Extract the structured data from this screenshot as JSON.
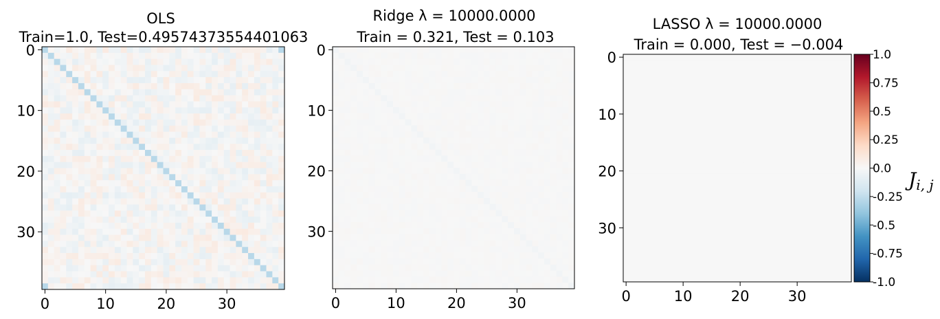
{
  "chart_data": [
    {
      "type": "heatmap",
      "title_line1": "OLS",
      "title_line2": "Train=1.0, Test=0.49574373554401063",
      "size": 40,
      "x_ticks": [
        "0",
        "10",
        "20",
        "30"
      ],
      "y_ticks": [
        "0",
        "10",
        "20",
        "30"
      ],
      "diagonal_value": -0.28,
      "corner_values": {
        "top_right": -0.28,
        "bottom_left": -0.28
      },
      "offdiag_noise_amplitude": 0.09,
      "background_value": 0.0
    },
    {
      "type": "heatmap",
      "title_line1": "Ridge λ = 10000.0000",
      "title_line2": "Train = 0.321, Test = 0.103",
      "size": 40,
      "x_ticks": [
        "0",
        "10",
        "20",
        "30"
      ],
      "y_ticks": [
        "0",
        "10",
        "20",
        "30"
      ],
      "diagonal_value": -0.03,
      "offdiag_noise_amplitude": 0.012,
      "background_value": 0.0
    },
    {
      "type": "heatmap",
      "title_line1": "LASSO λ = 10000.0000",
      "title_line2": "Train = 0.000, Test = −0.004",
      "size": 40,
      "x_ticks": [
        "0",
        "10",
        "20",
        "30"
      ],
      "y_ticks": [
        "0",
        "10",
        "20",
        "30"
      ],
      "diagonal_value": 0.0,
      "offdiag_noise_amplitude": 0.0,
      "background_value": 0.0
    }
  ],
  "colorbar": {
    "colormap": "RdBu_r",
    "vmin": -1.0,
    "vmax": 1.0,
    "ticks": [
      "1.0",
      "0.75",
      "0.5",
      "0.25",
      "0.0",
      "-0.25",
      "-0.5",
      "-0.75",
      "-1.0"
    ],
    "label": "J",
    "label_sub": "i, j",
    "colors": [
      "#053061",
      "#2166ac",
      "#4393c3",
      "#92c5de",
      "#d1e5f0",
      "#f7f7f7",
      "#fddbc7",
      "#f4a582",
      "#d6604d",
      "#b2182b",
      "#67001f"
    ]
  }
}
